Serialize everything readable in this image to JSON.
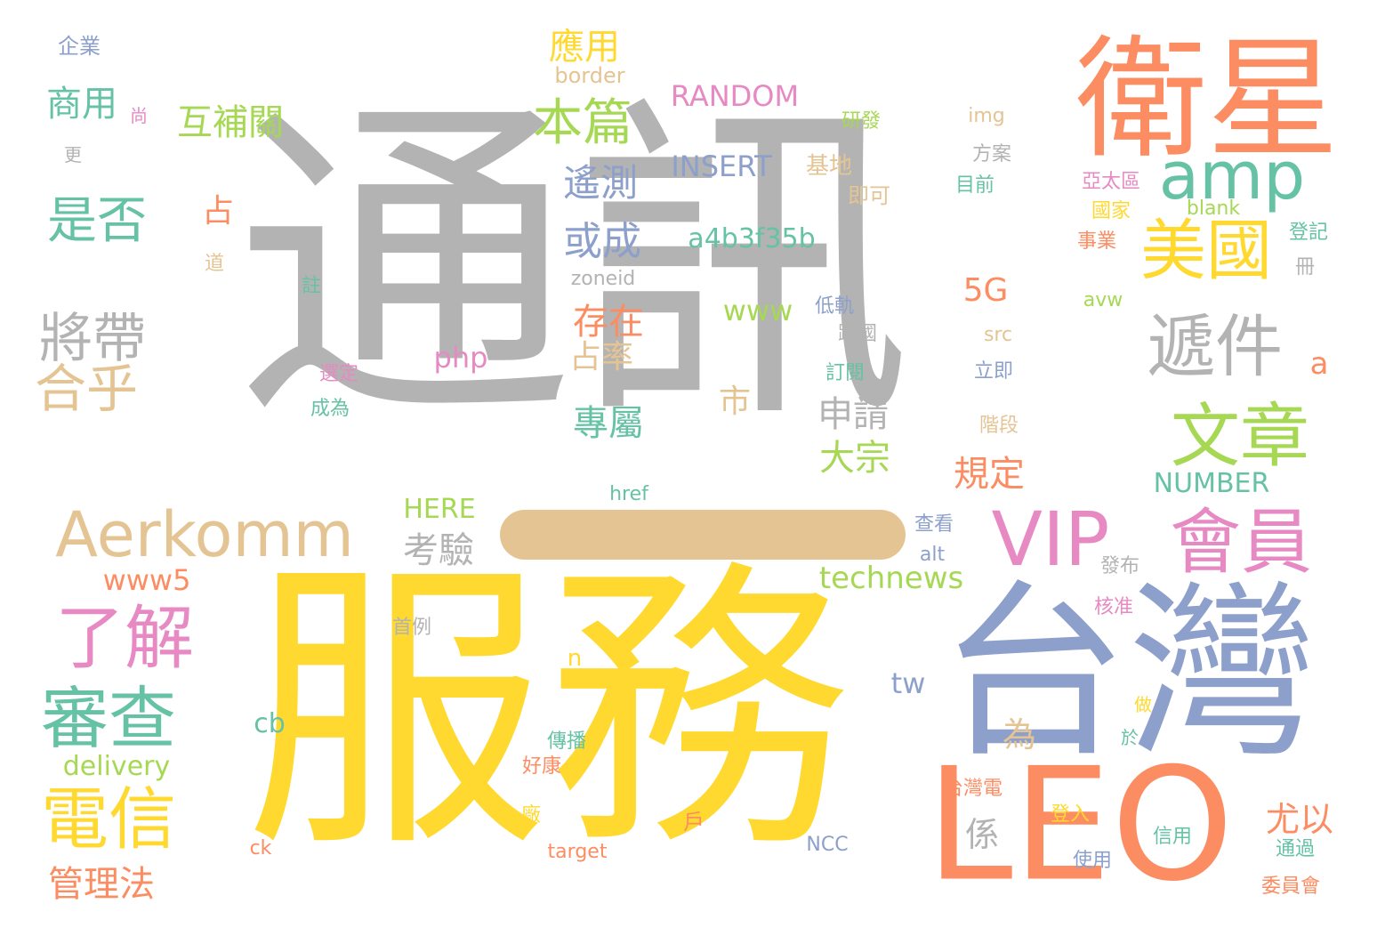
{
  "palette": {
    "gray": "#b3b3b3",
    "yellow": "#ffd92f",
    "orange": "#fc8d62",
    "blue": "#8da0cb",
    "teal": "#66c2a5",
    "pink": "#e78ac3",
    "green": "#a6d854",
    "tan": "#e5c494"
  },
  "words": [
    {
      "text": "通訊",
      "color": "gray"
    },
    {
      "text": "服務",
      "color": "yellow"
    },
    {
      "text": "台灣",
      "color": "blue"
    },
    {
      "text": "衛星",
      "color": "orange"
    },
    {
      "text": "LEO",
      "color": "orange"
    },
    {
      "text": "amp",
      "color": "teal"
    },
    {
      "text": "美國",
      "color": "yellow"
    },
    {
      "text": "遞件",
      "color": "gray"
    },
    {
      "text": "文章",
      "color": "green"
    },
    {
      "text": "會員",
      "color": "pink"
    },
    {
      "text": "VIP",
      "color": "pink"
    },
    {
      "text": "Aerkomm",
      "color": "tan"
    },
    {
      "text": "了解",
      "color": "pink"
    },
    {
      "text": "審查",
      "color": "teal"
    },
    {
      "text": "電信",
      "color": "yellow"
    },
    {
      "text": "管理法",
      "color": "orange"
    },
    {
      "text": "將帶",
      "color": "gray"
    },
    {
      "text": "合乎",
      "color": "tan"
    },
    {
      "text": "是否",
      "color": "teal"
    },
    {
      "text": "商用",
      "color": "teal"
    },
    {
      "text": "企業",
      "color": "blue"
    },
    {
      "text": "尚",
      "color": "pink"
    },
    {
      "text": "更",
      "color": "gray"
    },
    {
      "text": "互補關",
      "color": "green"
    },
    {
      "text": "本篇",
      "color": "green"
    },
    {
      "text": "應用",
      "color": "yellow"
    },
    {
      "text": "border",
      "color": "tan"
    },
    {
      "text": "RANDOM",
      "color": "pink"
    },
    {
      "text": "遙測",
      "color": "blue"
    },
    {
      "text": "或成",
      "color": "blue"
    },
    {
      "text": "INSERT",
      "color": "blue"
    },
    {
      "text": "a4b3f35b",
      "color": "teal"
    },
    {
      "text": "基地",
      "color": "tan"
    },
    {
      "text": "即可",
      "color": "tan"
    },
    {
      "text": "研發",
      "color": "green"
    },
    {
      "text": "img",
      "color": "tan"
    },
    {
      "text": "方案",
      "color": "gray"
    },
    {
      "text": "目前",
      "color": "teal"
    },
    {
      "text": "亞太區",
      "color": "pink"
    },
    {
      "text": "國家",
      "color": "yellow"
    },
    {
      "text": "blank",
      "color": "green"
    },
    {
      "text": "登記",
      "color": "teal"
    },
    {
      "text": "事業",
      "color": "orange"
    },
    {
      "text": "冊",
      "color": "gray"
    },
    {
      "text": "占",
      "color": "orange"
    },
    {
      "text": "道",
      "color": "tan"
    },
    {
      "text": "註",
      "color": "teal"
    },
    {
      "text": "zoneid",
      "color": "gray"
    },
    {
      "text": "5G",
      "color": "orange"
    },
    {
      "text": "www",
      "color": "green"
    },
    {
      "text": "存在",
      "color": "orange"
    },
    {
      "text": "占率",
      "color": "tan"
    },
    {
      "text": "php",
      "color": "pink"
    },
    {
      "text": "低軌",
      "color": "blue"
    },
    {
      "text": "跨國",
      "color": "gray"
    },
    {
      "text": "avw",
      "color": "green"
    },
    {
      "text": "src",
      "color": "tan"
    },
    {
      "text": "立即",
      "color": "blue"
    },
    {
      "text": "訂閱",
      "color": "teal"
    },
    {
      "text": "選定",
      "color": "pink"
    },
    {
      "text": "成為",
      "color": "teal"
    },
    {
      "text": "市",
      "color": "tan"
    },
    {
      "text": "申請",
      "color": "gray"
    },
    {
      "text": "大宗",
      "color": "green"
    },
    {
      "text": "專屬",
      "color": "teal"
    },
    {
      "text": "規定",
      "color": "orange"
    },
    {
      "text": "階段",
      "color": "tan"
    },
    {
      "text": "a",
      "color": "orange"
    },
    {
      "text": "NUMBER",
      "color": "teal"
    },
    {
      "text": "HERE",
      "color": "green"
    },
    {
      "text": "href",
      "color": "teal"
    },
    {
      "text": "考驗",
      "color": "gray"
    },
    {
      "text": "查看",
      "color": "blue"
    },
    {
      "text": "alt",
      "color": "blue"
    },
    {
      "text": "發布",
      "color": "gray"
    },
    {
      "text": "www5",
      "color": "orange"
    },
    {
      "text": "technews",
      "color": "green"
    },
    {
      "text": "首例",
      "color": "gray"
    },
    {
      "text": "核准",
      "color": "pink"
    },
    {
      "text": "n",
      "color": "yellow"
    },
    {
      "text": "tw",
      "color": "blue"
    },
    {
      "text": "為",
      "color": "tan"
    },
    {
      "text": "cb",
      "color": "teal"
    },
    {
      "text": "delivery",
      "color": "green"
    },
    {
      "text": "傳播",
      "color": "teal"
    },
    {
      "text": "好康",
      "color": "orange"
    },
    {
      "text": "做",
      "color": "yellow"
    },
    {
      "text": "於",
      "color": "teal"
    },
    {
      "text": "台灣電",
      "color": "orange"
    },
    {
      "text": "係",
      "color": "gray"
    },
    {
      "text": "尤以",
      "color": "orange"
    },
    {
      "text": "戶",
      "color": "orange"
    },
    {
      "text": "廠",
      "color": "yellow"
    },
    {
      "text": "登入",
      "color": "yellow"
    },
    {
      "text": "使用",
      "color": "blue"
    },
    {
      "text": "信用",
      "color": "teal"
    },
    {
      "text": "通過",
      "color": "teal"
    },
    {
      "text": "委員會",
      "color": "orange"
    },
    {
      "text": "NCC",
      "color": "blue"
    },
    {
      "text": "target",
      "color": "orange"
    },
    {
      "text": "ck",
      "color": "orange"
    }
  ]
}
